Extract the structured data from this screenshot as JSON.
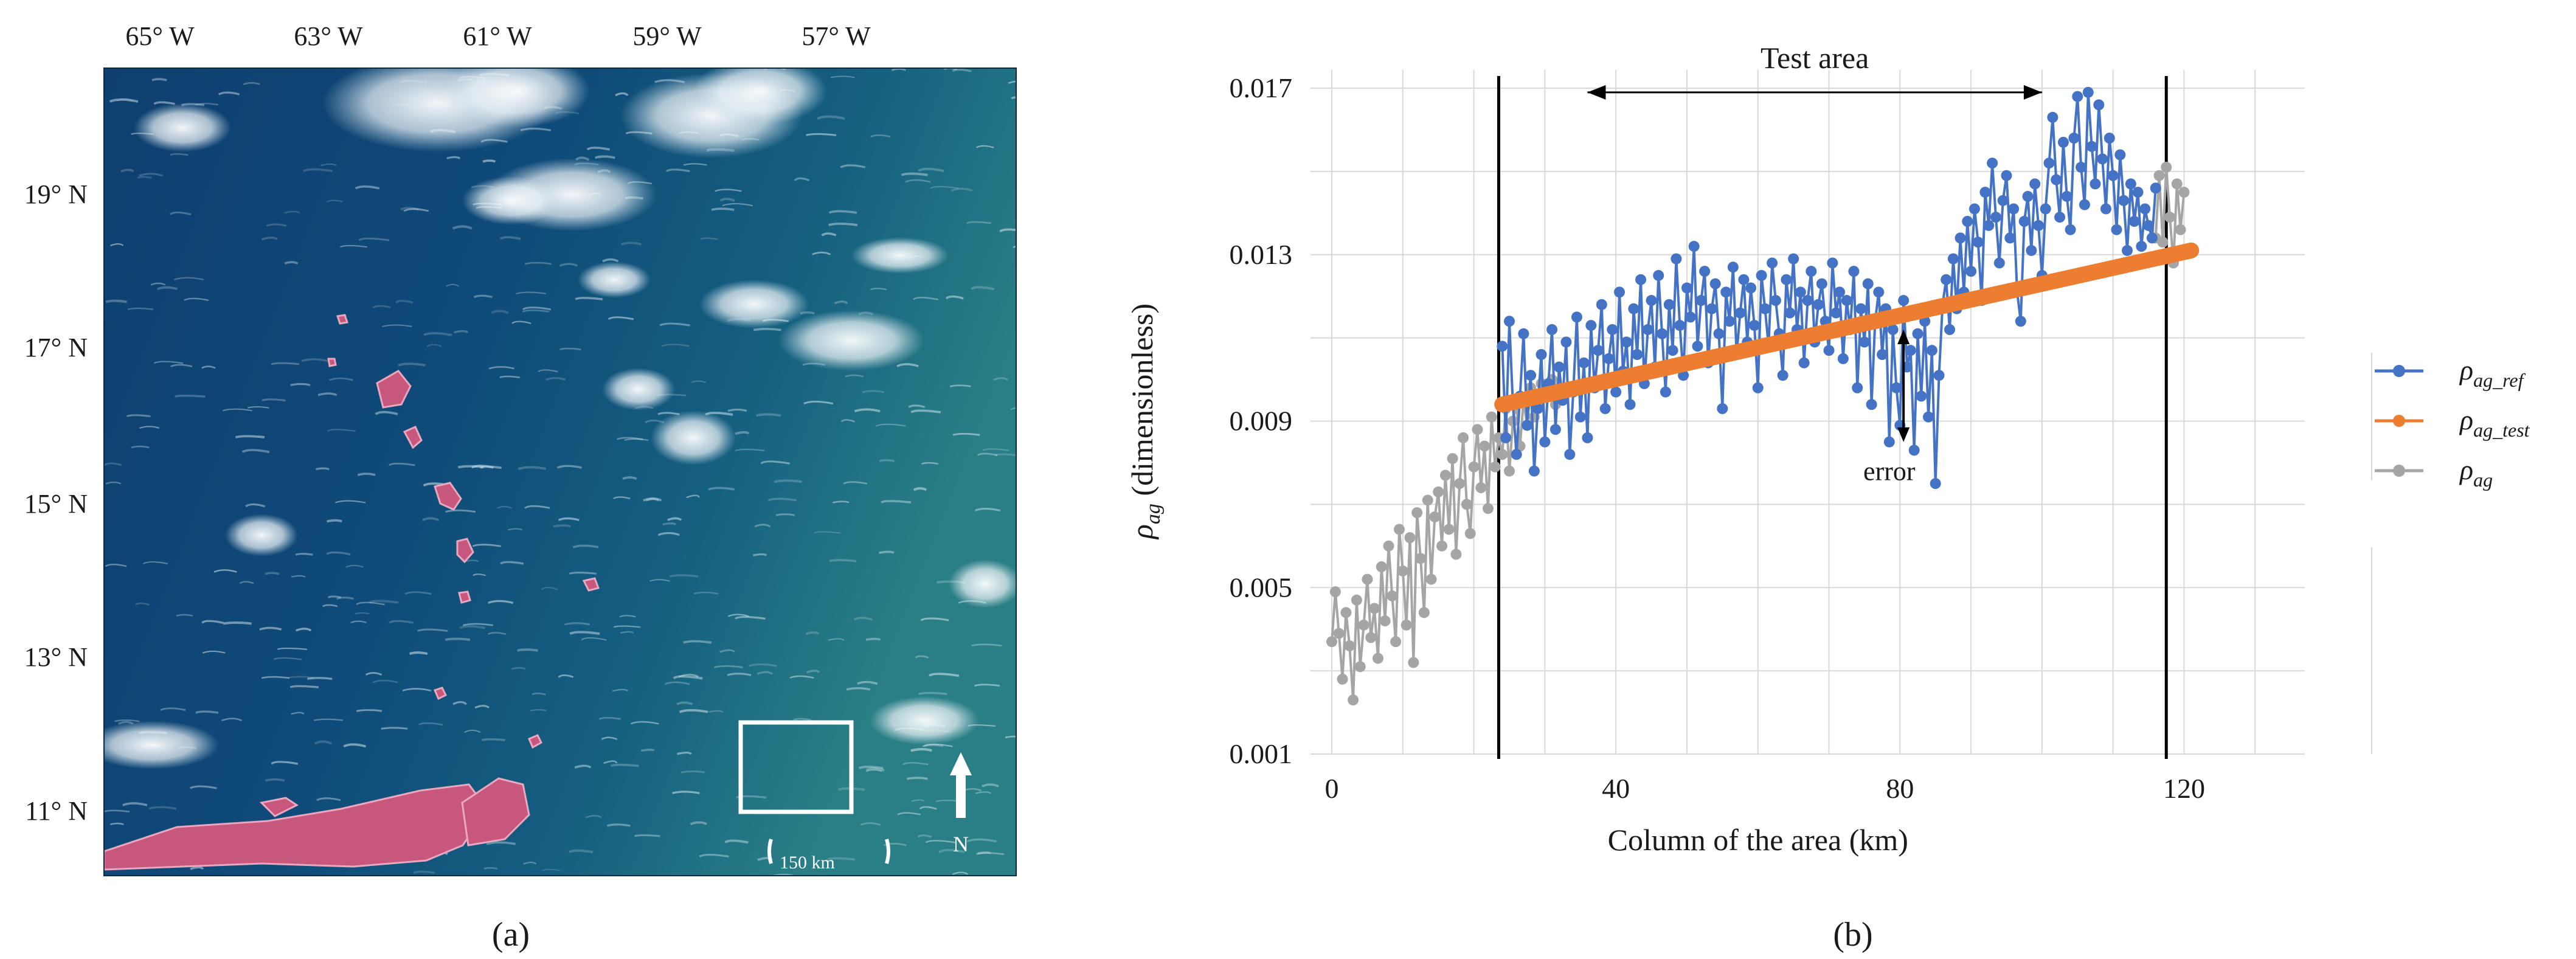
{
  "panels": {
    "a": {
      "caption": "(a)",
      "lon_labels": [
        "65° W",
        "63° W",
        "61° W",
        "59° W",
        "57° W"
      ],
      "lat_labels": [
        "19° N",
        "17° N",
        "15° N",
        "13° N",
        "11° N"
      ],
      "scale_label": "150 km",
      "north_label": "N"
    },
    "b": {
      "caption": "(b)"
    }
  },
  "colors": {
    "ref": "#4472C4",
    "test": "#ED7D31",
    "ag": "#A5A5A5",
    "grid": "#D9D9D9"
  },
  "chart_data": {
    "type": "line",
    "title": "",
    "xlabel": "Column of the area (km)",
    "ylabel": "ρag (dimensionless)",
    "xlim": [
      -3,
      137
    ],
    "ylim": [
      0.001,
      0.017
    ],
    "xticks": [
      0,
      40,
      80,
      120
    ],
    "yticks": [
      0.001,
      0.005,
      0.009,
      0.013,
      0.017
    ],
    "xtick_labels": [
      "0",
      "40",
      "80",
      "120"
    ],
    "ytick_labels": [
      "0.001",
      "0.005",
      "0.009",
      "0.013",
      "0.017"
    ],
    "legend": {
      "placement": "right",
      "entries": [
        {
          "key": "ref",
          "label": "ρag_ref"
        },
        {
          "key": "test",
          "label": "ρag_test"
        },
        {
          "key": "ag",
          "label": "ρag"
        }
      ]
    },
    "annotations": {
      "test_area_label": "Test area",
      "test_area_x": [
        36,
        100
      ],
      "test_area_y": 0.0169,
      "boundary_lines_x": [
        23.5,
        117.5
      ],
      "error_label": "error",
      "error_x": 80.5,
      "error_y": [
        0.0112,
        0.0085
      ],
      "error_label_at": [
        78.5,
        0.0078
      ]
    },
    "series": [
      {
        "name": "ρag",
        "key": "ag",
        "x_start": 0,
        "x_step": 0.5,
        "y": [
          0.0037,
          0.0049,
          0.0039,
          0.0028,
          0.0044,
          0.0036,
          0.0023,
          0.0047,
          0.0031,
          0.0041,
          0.0052,
          0.0038,
          0.0045,
          0.0033,
          0.0055,
          0.0042,
          0.006,
          0.0048,
          0.0037,
          0.0064,
          0.0054,
          0.0041,
          0.0062,
          0.0032,
          0.0068,
          0.0057,
          0.0044,
          0.0071,
          0.0052,
          0.0067,
          0.0073,
          0.006,
          0.0077,
          0.0064,
          0.0081,
          0.0058,
          0.0075,
          0.0086,
          0.007,
          0.0063,
          0.0079,
          0.0088,
          0.0074,
          0.0084,
          0.0069,
          0.0091,
          0.0079,
          0.0086,
          0.0082,
          0.0093,
          0.0078,
          0.009,
          0.0094,
          0.0084,
          0.0095,
          0.0089,
          0.0098,
          0.0091,
          0.0094,
          0.0099,
          0.0097,
          0.0096,
          0.01,
          0.0094,
          0.0098
        ]
      },
      {
        "name": "ρag",
        "key": "ag",
        "x_start": 116,
        "x_step": 0.5,
        "y": [
          0.0134,
          0.0149,
          0.0133,
          0.0151,
          0.0139,
          0.0128,
          0.0147,
          0.0136,
          0.0145
        ]
      },
      {
        "name": "ρag_ref",
        "key": "ref",
        "x_start": 24,
        "x_step": 0.5,
        "y": [
          0.0108,
          0.0086,
          0.0114,
          0.0094,
          0.0082,
          0.0096,
          0.0111,
          0.0089,
          0.0101,
          0.0078,
          0.0093,
          0.0106,
          0.0085,
          0.0099,
          0.0112,
          0.0088,
          0.0103,
          0.0095,
          0.0109,
          0.0082,
          0.0097,
          0.0115,
          0.0091,
          0.0104,
          0.0086,
          0.0113,
          0.0098,
          0.0107,
          0.0118,
          0.0093,
          0.0105,
          0.0112,
          0.0097,
          0.0121,
          0.0102,
          0.0109,
          0.0094,
          0.0117,
          0.0106,
          0.0124,
          0.0099,
          0.0112,
          0.0119,
          0.0103,
          0.0125,
          0.0111,
          0.0097,
          0.0118,
          0.0107,
          0.0129,
          0.0113,
          0.0101,
          0.0122,
          0.0115,
          0.0132,
          0.0108,
          0.0119,
          0.0126,
          0.0104,
          0.0117,
          0.0123,
          0.0111,
          0.0093,
          0.0121,
          0.0114,
          0.0127,
          0.0106,
          0.0116,
          0.0124,
          0.0109,
          0.0122,
          0.0113,
          0.0098,
          0.0125,
          0.0117,
          0.0108,
          0.0128,
          0.0119,
          0.0111,
          0.0101,
          0.0124,
          0.0116,
          0.0129,
          0.0112,
          0.0121,
          0.0104,
          0.0119,
          0.0126,
          0.0109,
          0.0118,
          0.0123,
          0.0114,
          0.0107,
          0.0128,
          0.0116,
          0.0121,
          0.0105,
          0.0119,
          0.0112,
          0.0126,
          0.0098,
          0.0117,
          0.0109,
          0.0123,
          0.0094,
          0.0114,
          0.0121,
          0.0106,
          0.0117,
          0.0085,
          0.0112,
          0.0098,
          0.0089,
          0.0119,
          0.0103,
          0.0107,
          0.0083,
          0.0111,
          0.0096,
          0.0114,
          0.0091,
          0.0107,
          0.0075,
          0.0101,
          0.0118,
          0.0124,
          0.0112,
          0.0129,
          0.0117,
          0.0134,
          0.0121,
          0.0138,
          0.0126,
          0.0141,
          0.0133,
          0.0119,
          0.0145,
          0.0137,
          0.0152,
          0.0139,
          0.0128,
          0.0143,
          0.0149,
          0.0134,
          0.0141,
          0.0121,
          0.0114,
          0.0138,
          0.0144,
          0.0131,
          0.0147,
          0.0137,
          0.0125,
          0.0141,
          0.0152,
          0.0163,
          0.0148,
          0.0139,
          0.0157,
          0.0144,
          0.0136,
          0.0158,
          0.0168,
          0.0151,
          0.0142,
          0.0169,
          0.0156,
          0.0147,
          0.0166,
          0.0153,
          0.0141,
          0.0158,
          0.0149,
          0.0136,
          0.0154,
          0.0143,
          0.0131,
          0.0147,
          0.0138,
          0.0145,
          0.0132,
          0.0141,
          0.0137,
          0.0134,
          0.0146
        ]
      },
      {
        "name": "ρag_test",
        "key": "test",
        "x_start": 24,
        "x_end": 121,
        "y_start": 0.0094,
        "y_end": 0.0131
      }
    ]
  }
}
